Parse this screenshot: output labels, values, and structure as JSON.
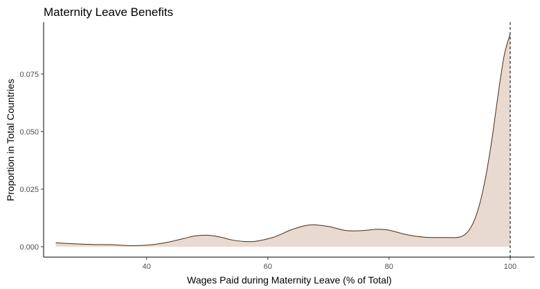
{
  "chart_data": {
    "type": "area",
    "title": "Maternity Leave Benefits",
    "xlabel": "Wages Paid during Maternity Leave (% of Total)",
    "ylabel": "Proportion in Total Countries",
    "xlim": [
      23,
      104
    ],
    "ylim": [
      -0.0045,
      0.0975
    ],
    "x_ticks": [
      40,
      60,
      80,
      100
    ],
    "x_tick_labels": [
      "40",
      "60",
      "80",
      "100"
    ],
    "y_ticks": [
      0,
      0.025,
      0.05,
      0.075
    ],
    "y_tick_labels": [
      "0.000",
      "0.025",
      "0.050",
      "0.075"
    ],
    "x": [
      25,
      28,
      31,
      34,
      37,
      40,
      43,
      46,
      48,
      50,
      52,
      54,
      56,
      58,
      61,
      64,
      67,
      70,
      73,
      76,
      78,
      80,
      83,
      86,
      88,
      90,
      91,
      92,
      93,
      94,
      95,
      96,
      97,
      98,
      99,
      100
    ],
    "y": [
      0.0017,
      0.0013,
      0.001,
      0.0009,
      0.0005,
      0.0007,
      0.0017,
      0.0035,
      0.0047,
      0.005,
      0.0043,
      0.003,
      0.0023,
      0.0024,
      0.0042,
      0.0075,
      0.0095,
      0.0088,
      0.007,
      0.0071,
      0.0076,
      0.0072,
      0.0052,
      0.0041,
      0.004,
      0.004,
      0.004,
      0.0045,
      0.0065,
      0.011,
      0.019,
      0.031,
      0.047,
      0.066,
      0.083,
      0.0925
    ],
    "reference_line_x": 100,
    "fill_color": "#e8dad0",
    "line_color": "#4a2a0f",
    "grid": false
  }
}
